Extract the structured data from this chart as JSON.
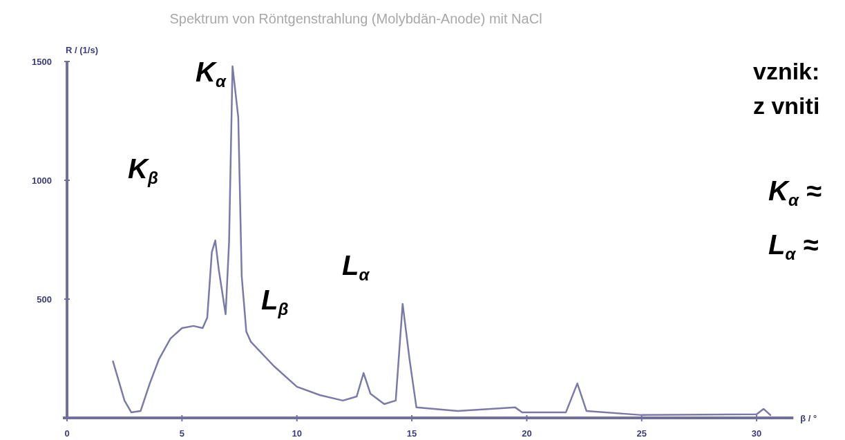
{
  "chart_data": {
    "type": "line",
    "title": "Spektrum von Röntgenstrahlung (Molybdän-Anode) mit NaCl",
    "xlabel": "β / °",
    "ylabel": "R / (1/s)",
    "x": [
      2.0,
      2.5,
      2.8,
      3.2,
      3.6,
      4.0,
      4.5,
      5.0,
      5.5,
      5.9,
      6.1,
      6.3,
      6.45,
      6.6,
      6.9,
      7.05,
      7.2,
      7.45,
      7.6,
      7.8,
      8.0,
      9.0,
      10.0,
      11.0,
      12.0,
      12.6,
      12.9,
      13.2,
      13.8,
      14.3,
      14.6,
      14.9,
      15.2,
      17.0,
      19.5,
      19.8,
      21.7,
      22.2,
      22.6,
      25.0,
      30.0,
      30.3,
      30.6
    ],
    "series": [
      {
        "color": "#7a7aaa",
        "values": [
          238,
          73,
          23,
          29,
          145,
          247,
          334,
          378,
          387,
          378,
          422,
          698,
          747,
          625,
          436,
          741,
          1480,
          1265,
          596,
          363,
          320,
          218,
          131,
          96,
          73,
          90,
          189,
          102,
          58,
          73,
          480,
          247,
          44,
          29,
          44,
          23,
          23,
          145,
          29,
          12,
          15,
          38,
          12
        ]
      }
    ],
    "xlim": [
      0,
      31.6
    ],
    "xticks": [
      0,
      5,
      10,
      15,
      20,
      25,
      30
    ],
    "ylim": [
      0,
      1500
    ],
    "yticks": [
      500,
      1000,
      1500
    ],
    "grid": false,
    "marker": "none",
    "line_style": "solid",
    "annotations": [
      "K$_{α}$",
      "K$_{β}$",
      "L$_{β}$",
      "L$_{α}$",
      "vznik:",
      "z vniti",
      "K$_{α}$ ≈",
      "L$_{α}$ ≈"
    ]
  }
}
